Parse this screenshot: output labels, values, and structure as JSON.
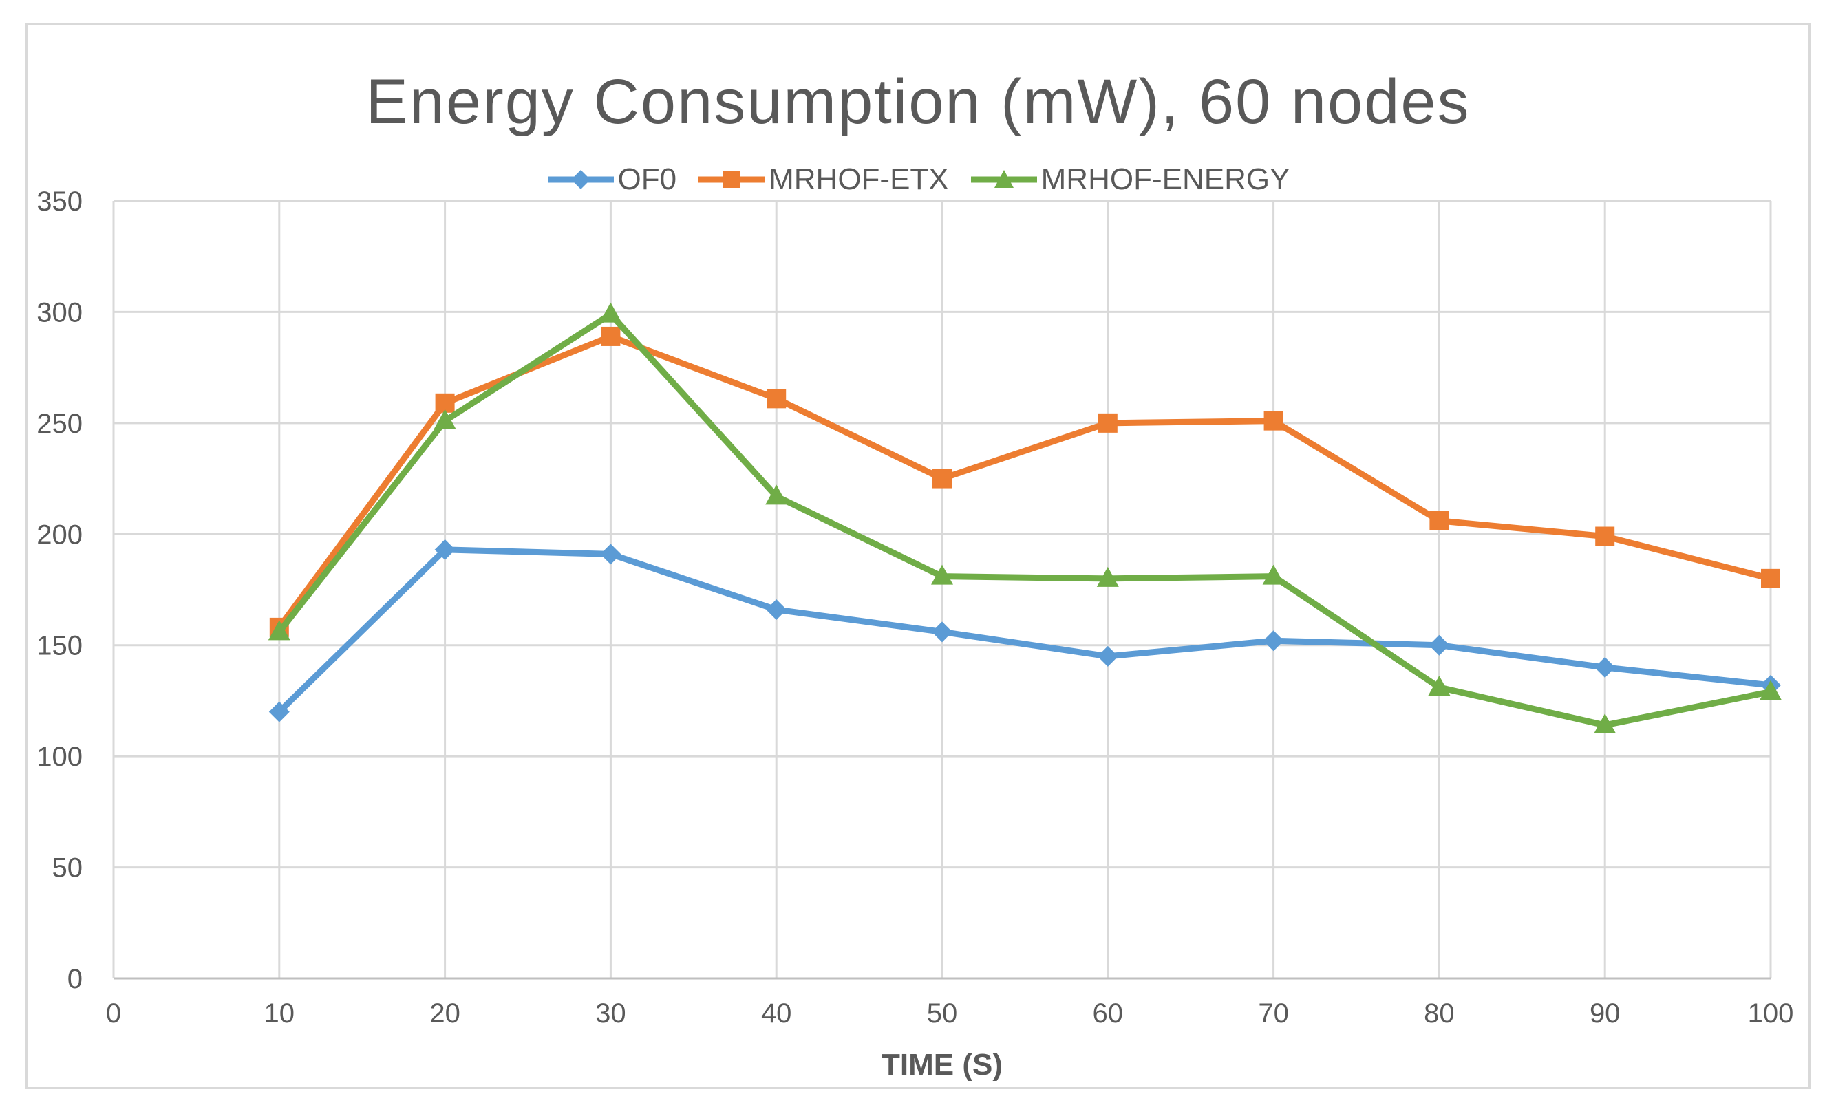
{
  "chart_data": {
    "type": "line",
    "title": "Energy Consumption (mW), 60 nodes",
    "xlabel": "TIME (S)",
    "ylabel": "",
    "xlim": [
      0,
      100
    ],
    "ylim": [
      0,
      350
    ],
    "x_ticks": [
      0,
      10,
      20,
      30,
      40,
      50,
      60,
      70,
      80,
      90,
      100
    ],
    "y_ticks": [
      0,
      50,
      100,
      150,
      200,
      250,
      300,
      350
    ],
    "grid": true,
    "legend_position": "top-center",
    "x": [
      10,
      20,
      30,
      40,
      50,
      60,
      70,
      80,
      90,
      100
    ],
    "series": [
      {
        "name": "OF0",
        "color": "#5b9bd5",
        "marker": "diamond",
        "values": [
          120,
          193,
          191,
          166,
          156,
          145,
          152,
          150,
          140,
          132
        ]
      },
      {
        "name": "MRHOF-ETX",
        "color": "#ed7d31",
        "marker": "square",
        "values": [
          158,
          259,
          289,
          261,
          225,
          250,
          251,
          206,
          199,
          180
        ]
      },
      {
        "name": "MRHOF-ENERGY",
        "color": "#70ad47",
        "marker": "triangle",
        "values": [
          156,
          251,
          299,
          217,
          181,
          180,
          181,
          131,
          114,
          129
        ]
      }
    ]
  }
}
